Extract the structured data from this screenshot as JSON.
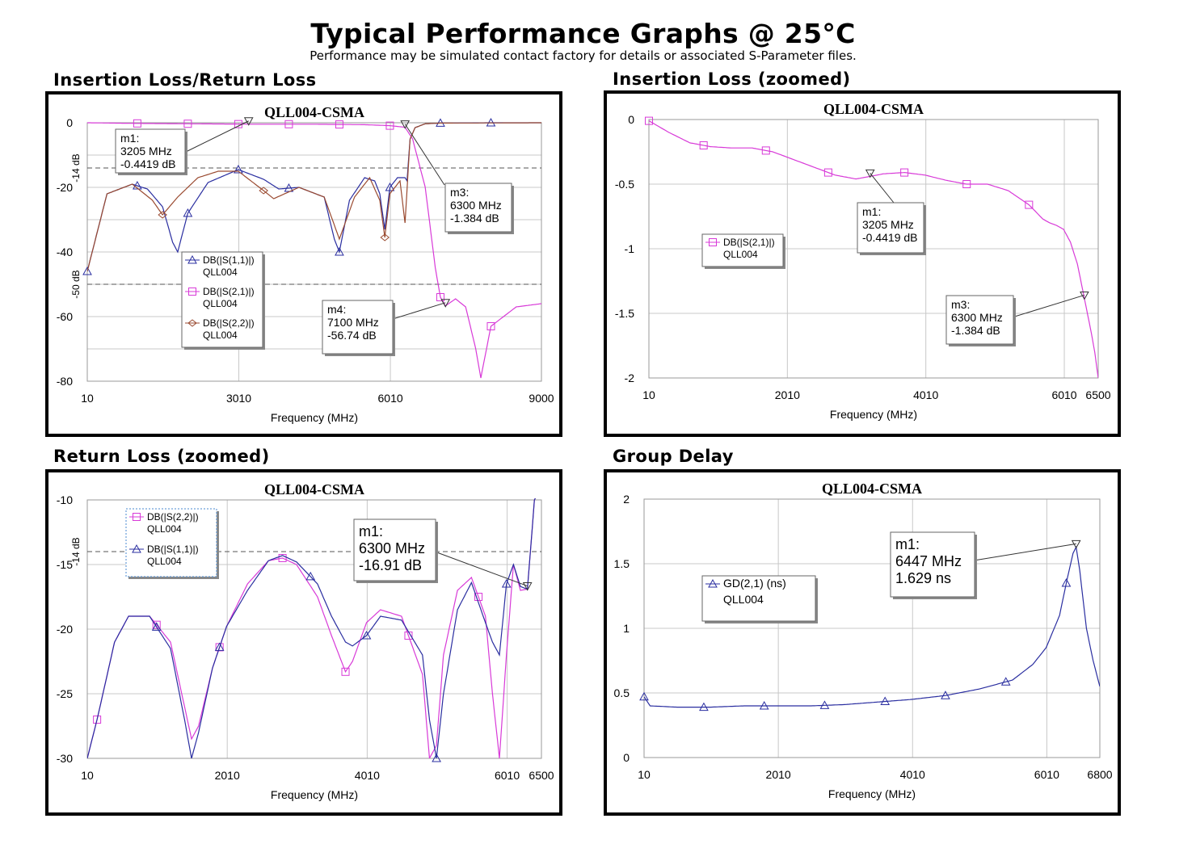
{
  "header": {
    "title": "Typical Performance Graphs @ 25°C",
    "subtitle": "Performance may be simulated contact factory for details or associated S-Parameter files."
  },
  "colors": {
    "s11": "#2a2ea0",
    "s21": "#d83ad8",
    "s22": "#9a4a30",
    "gd": "#2a2ea0",
    "grid": "#c8c8c8",
    "ref": "#555555"
  },
  "icons": {
    "marker_up": "triangle-up-icon",
    "marker_down": "triangle-down-icon",
    "marker_sq": "square-icon",
    "marker_dia": "diamond-icon"
  },
  "panels": [
    {
      "section_title": "Insertion Loss/Return Loss",
      "plot_title": "QLL004-CSMA",
      "xlabel": "Frequency (MHz)",
      "xticks": [
        "10",
        "3010",
        "6010",
        "9000"
      ],
      "yticks": [
        "0",
        "-20",
        "-40",
        "-60",
        "-80"
      ],
      "ref_lines": [
        "-14 dB",
        "-50 dB"
      ],
      "legend": [
        {
          "trace": "DB(|S(1,1)|)",
          "device": "QLL004"
        },
        {
          "trace": "DB(|S(2,1)|)",
          "device": "QLL004"
        },
        {
          "trace": "DB(|S(2,2)|)",
          "device": "QLL004"
        }
      ],
      "markers": [
        {
          "name": "m1:",
          "freq": "3205 MHz",
          "value": "-0.4419 dB"
        },
        {
          "name": "m3:",
          "freq": "6300 MHz",
          "value": "-1.384 dB"
        },
        {
          "name": "m4:",
          "freq": "7100 MHz",
          "value": "-56.74 dB"
        }
      ]
    },
    {
      "section_title": "Insertion Loss (zoomed)",
      "plot_title": "QLL004-CSMA",
      "xlabel": "Frequency (MHz)",
      "xticks": [
        "10",
        "2010",
        "4010",
        "6010",
        "6500"
      ],
      "yticks": [
        "0",
        "-0.5",
        "-1",
        "-1.5",
        "-2"
      ],
      "legend": [
        {
          "trace": "DB(|S(2,1)|)",
          "device": "QLL004"
        }
      ],
      "markers": [
        {
          "name": "m1:",
          "freq": "3205 MHz",
          "value": "-0.4419 dB"
        },
        {
          "name": "m3:",
          "freq": "6300 MHz",
          "value": "-1.384 dB"
        }
      ]
    },
    {
      "section_title": "Return Loss (zoomed)",
      "plot_title": "QLL004-CSMA",
      "xlabel": "Frequency (MHz)",
      "xticks": [
        "10",
        "2010",
        "4010",
        "6010",
        "6500"
      ],
      "yticks": [
        "-10",
        "-15",
        "-20",
        "-25",
        "-30"
      ],
      "ref_lines": [
        "-14 dB"
      ],
      "legend": [
        {
          "trace": "DB(|S(2,2)|)",
          "device": "QLL004"
        },
        {
          "trace": "DB(|S(1,1)|)",
          "device": "QLL004"
        }
      ],
      "markers": [
        {
          "name": "m1:",
          "freq": "6300 MHz",
          "value": "-16.91 dB"
        }
      ]
    },
    {
      "section_title": "Group Delay",
      "plot_title": "QLL004-CSMA",
      "xlabel": "Frequency (MHz)",
      "xticks": [
        "10",
        "2010",
        "4010",
        "6010",
        "6800"
      ],
      "yticks": [
        "2",
        "1.5",
        "1",
        "0.5",
        "0"
      ],
      "legend": [
        {
          "trace": "GD(2,1) (ns)",
          "device": "QLL004"
        }
      ],
      "markers": [
        {
          "name": "m1:",
          "freq": "6447 MHz",
          "value": "1.629 ns"
        }
      ]
    }
  ],
  "chart_data": [
    {
      "type": "line",
      "title": "QLL004-CSMA",
      "xlabel": "Frequency (MHz)",
      "ylabel": "",
      "xlim": [
        10,
        9000
      ],
      "ylim": [
        -80,
        0
      ],
      "grid": true,
      "legend_position": "center-left",
      "series": [
        {
          "name": "DB(|S(1,1)|)",
          "x": [
            10,
            400,
            900,
            1200,
            1500,
            1700,
            1800,
            2000,
            2400,
            3000,
            3500,
            3800,
            4200,
            4700,
            4900,
            5000,
            5200,
            5500,
            5700,
            5800,
            5900,
            6000,
            6150,
            6300,
            6340,
            6400,
            6500,
            6700,
            7000,
            8000,
            9000
          ],
          "y": [
            -46,
            -22,
            -19,
            -20.5,
            -26,
            -37,
            -40,
            -28,
            -18.5,
            -14.5,
            -17.5,
            -20.5,
            -20,
            -23,
            -36,
            -40,
            -24,
            -17,
            -18,
            -22,
            -33,
            -20,
            -17,
            -17,
            -18,
            -5,
            -1.5,
            -0.3,
            -0.1,
            0,
            0
          ]
        },
        {
          "name": "DB(|S(2,1)|)",
          "x": [
            10,
            1000,
            3205,
            4500,
            5500,
            6000,
            6300,
            6450,
            6700,
            6900,
            7000,
            7100,
            7300,
            7500,
            7700,
            7800,
            8000,
            8500,
            9000
          ],
          "y": [
            0,
            -0.2,
            -0.44,
            -0.45,
            -0.6,
            -0.9,
            -1.4,
            -5,
            -20,
            -45,
            -54,
            -56.7,
            -54.5,
            -57,
            -70,
            -79,
            -63,
            -57,
            -56
          ]
        },
        {
          "name": "DB(|S(2,2)|)",
          "x": [
            10,
            400,
            900,
            1300,
            1500,
            1800,
            2200,
            2600,
            3000,
            3500,
            3700,
            4200,
            4700,
            5000,
            5300,
            5600,
            5800,
            5900,
            6000,
            6200,
            6300,
            6400,
            6500,
            6700,
            7000,
            9000
          ],
          "y": [
            -46,
            -22,
            -19,
            -24,
            -28.5,
            -23,
            -17,
            -15,
            -15,
            -21,
            -23.5,
            -20,
            -23,
            -36,
            -23,
            -17,
            -24,
            -35.5,
            -22,
            -18,
            -31,
            -5,
            -1.5,
            -0.3,
            -0.1,
            0
          ]
        }
      ]
    },
    {
      "type": "line",
      "title": "QLL004-CSMA",
      "xlabel": "Frequency (MHz)",
      "ylabel": "",
      "xlim": [
        10,
        6500
      ],
      "ylim": [
        -2,
        0
      ],
      "grid": true,
      "legend_position": "center-left",
      "series": [
        {
          "name": "DB(|S(2,1)|)",
          "x": [
            10,
            300,
            600,
            900,
            1200,
            1500,
            1800,
            2100,
            2400,
            2700,
            3000,
            3205,
            3400,
            3700,
            4000,
            4300,
            4600,
            4900,
            5200,
            5500,
            5700,
            5800,
            5900,
            6000,
            6100,
            6200,
            6300,
            6400,
            6450,
            6500
          ],
          "y": [
            -0.01,
            -0.1,
            -0.18,
            -0.21,
            -0.22,
            -0.22,
            -0.25,
            -0.31,
            -0.37,
            -0.43,
            -0.46,
            -0.44,
            -0.42,
            -0.41,
            -0.43,
            -0.47,
            -0.5,
            -0.5,
            -0.55,
            -0.66,
            -0.77,
            -0.8,
            -0.82,
            -0.85,
            -0.95,
            -1.12,
            -1.384,
            -1.65,
            -1.8,
            -2.0
          ]
        }
      ]
    },
    {
      "type": "line",
      "title": "QLL004-CSMA",
      "xlabel": "Frequency (MHz)",
      "ylabel": "",
      "xlim": [
        10,
        6500
      ],
      "ylim": [
        -30,
        -10
      ],
      "grid": true,
      "legend_position": "top-left",
      "series": [
        {
          "name": "DB(|S(2,2)|)",
          "x": [
            10,
            150,
            400,
            600,
            900,
            1200,
            1400,
            1500,
            1600,
            1800,
            2000,
            2300,
            2600,
            2800,
            3000,
            3300,
            3500,
            3700,
            3800,
            4000,
            4200,
            4500,
            4800,
            4900,
            5000,
            5100,
            5300,
            5500,
            5700,
            5800,
            5900,
            6000,
            6100,
            6200,
            6300,
            6400,
            6500
          ],
          "y": [
            -30,
            -27,
            -21,
            -19,
            -19,
            -21,
            -26,
            -28.5,
            -27.5,
            -23,
            -19.8,
            -16.5,
            -14.7,
            -14.5,
            -15,
            -17.5,
            -20.5,
            -23.3,
            -22.5,
            -19.5,
            -18.5,
            -19,
            -23.5,
            -30,
            -29,
            -22,
            -17,
            -16,
            -19,
            -25,
            -30,
            -22,
            -15,
            -17,
            -16.9,
            -10,
            -9
          ]
        },
        {
          "name": "DB(|S(1,1)|)",
          "x": [
            10,
            150,
            400,
            600,
            900,
            1200,
            1400,
            1500,
            1600,
            1800,
            2000,
            2300,
            2600,
            2800,
            3000,
            3300,
            3500,
            3700,
            3800,
            4000,
            4200,
            4500,
            4800,
            4900,
            5000,
            5100,
            5300,
            5500,
            5700,
            5800,
            5900,
            6000,
            6100,
            6200,
            6300,
            6400,
            6500
          ],
          "y": [
            -30,
            -27,
            -21,
            -19,
            -19,
            -21.5,
            -27,
            -30,
            -28,
            -23,
            -19.8,
            -17,
            -14.7,
            -14.3,
            -14.8,
            -16.5,
            -19,
            -21,
            -21.3,
            -20.5,
            -19,
            -19.3,
            -22,
            -27,
            -30,
            -25,
            -18.5,
            -16.4,
            -19.5,
            -21,
            -22,
            -16.5,
            -15,
            -16.7,
            -16.91,
            -10,
            -9
          ]
        }
      ]
    },
    {
      "type": "line",
      "title": "QLL004-CSMA",
      "xlabel": "Frequency (MHz)",
      "ylabel": "",
      "xlim": [
        10,
        6800
      ],
      "ylim": [
        0,
        2
      ],
      "grid": true,
      "legend_position": "center-left",
      "series": [
        {
          "name": "GD(2,1) (ns)",
          "x": [
            10,
            100,
            500,
            1000,
            1500,
            2000,
            2500,
            3000,
            3500,
            4000,
            4500,
            5000,
            5500,
            5800,
            6000,
            6200,
            6300,
            6400,
            6447,
            6500,
            6600,
            6700,
            6800
          ],
          "y": [
            0.47,
            0.4,
            0.39,
            0.39,
            0.4,
            0.4,
            0.4,
            0.41,
            0.43,
            0.45,
            0.48,
            0.53,
            0.6,
            0.72,
            0.85,
            1.1,
            1.35,
            1.58,
            1.629,
            1.45,
            1.0,
            0.75,
            0.55
          ]
        }
      ]
    }
  ]
}
